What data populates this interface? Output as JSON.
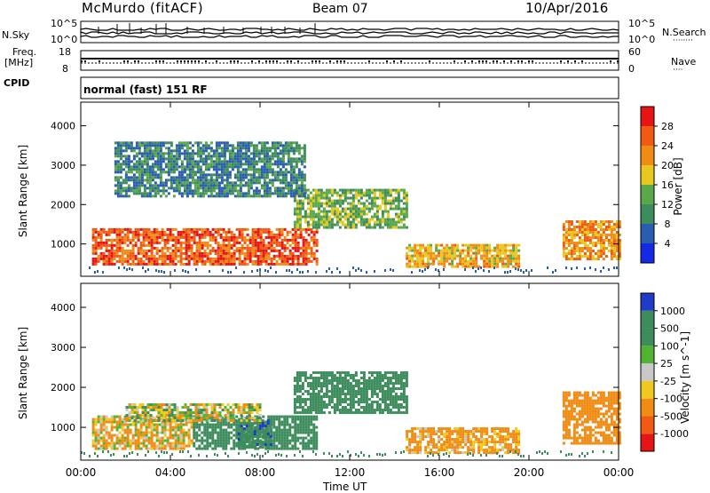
{
  "header": {
    "station": "McMurdo (fitACF)",
    "beam": "Beam 07",
    "date": "10/Apr/2016"
  },
  "status_panel": {
    "left_top": "N.Sky",
    "left_ticks": [
      "10^5",
      "10^0"
    ],
    "right_top": "N.Search",
    "right_ticks": [
      "10^5",
      "10^0"
    ],
    "freq_label": "Freq.",
    "freq_unit": "[MHz]",
    "freq_ticks": [
      "18",
      "8"
    ],
    "nave_label": "Nave",
    "nave_ticks": [
      "60",
      "0"
    ],
    "cpid_label": "CPID",
    "mode_text": "normal (fast) 151 RF"
  },
  "chart_data": [
    {
      "type": "heatmap",
      "title": "",
      "ylabel": "Slant Range [km]",
      "xlabel": "",
      "ylim": [
        180,
        4600
      ],
      "yticks": [
        1000,
        2000,
        3000,
        4000
      ],
      "xlim_hours": [
        0,
        24
      ],
      "colorbar": {
        "label": "Power [dB]",
        "tick_labels": [
          "4",
          "8",
          "12",
          "16",
          "20",
          "24",
          "28"
        ],
        "colors": [
          "#1428e6",
          "#2a5cb0",
          "#3c8c5c",
          "#5aa84a",
          "#e6c81e",
          "#f08c14",
          "#f05a14",
          "#e61414"
        ]
      },
      "echo_regions": [
        {
          "t0": 0.5,
          "t1": 10.5,
          "r0": 500,
          "r1": 1400,
          "value_db": 26
        },
        {
          "t0": 9.5,
          "t1": 14.5,
          "r0": 1400,
          "r1": 2400,
          "value_db": 14
        },
        {
          "t0": 14.5,
          "t1": 19.5,
          "r0": 400,
          "r1": 1000,
          "value_db": 20
        },
        {
          "t0": 21.5,
          "t1": 24,
          "r0": 600,
          "r1": 1600,
          "value_db": 22
        },
        {
          "t0": 1.5,
          "t1": 10,
          "r0": 2200,
          "r1": 3600,
          "value_db": 9
        }
      ]
    },
    {
      "type": "heatmap",
      "title": "",
      "ylabel": "Slant Range [km]",
      "xlabel": "Time UT",
      "ylim": [
        180,
        4600
      ],
      "yticks": [
        1000,
        2000,
        3000,
        4000
      ],
      "xlim_hours": [
        0,
        24
      ],
      "xtick_labels": [
        "00:00",
        "04:00",
        "08:00",
        "12:00",
        "16:00",
        "20:00",
        "00:00"
      ],
      "colorbar": {
        "label": "Velocity [m s^-1]",
        "tick_labels": [
          "1000",
          "500",
          "100",
          "25",
          "-25",
          "-100",
          "-500",
          "-1000"
        ],
        "colors": [
          "#1e3cc8",
          "#3c8c5c",
          "#3c8c5c",
          "#50b432",
          "#c8c8c8",
          "#f0c81e",
          "#f08c14",
          "#f05a14",
          "#e61414"
        ]
      },
      "echo_regions": [
        {
          "t0": 0.5,
          "t1": 5,
          "r0": 500,
          "r1": 1300,
          "value_ms": -100
        },
        {
          "t0": 5,
          "t1": 10.5,
          "r0": 500,
          "r1": 1300,
          "value_ms": 300
        },
        {
          "t0": 7,
          "t1": 8.5,
          "r0": 500,
          "r1": 1200,
          "value_ms": 900
        },
        {
          "t0": 2,
          "t1": 8,
          "r0": 1200,
          "r1": 1600,
          "value_ms": 0
        },
        {
          "t0": 9.5,
          "t1": 14.5,
          "r0": 1400,
          "r1": 2400,
          "value_ms": 300
        },
        {
          "t0": 14.5,
          "t1": 19.5,
          "r0": 400,
          "r1": 1000,
          "value_ms": -200
        },
        {
          "t0": 21.5,
          "t1": 24,
          "r0": 600,
          "r1": 1900,
          "value_ms": -300
        }
      ]
    }
  ]
}
